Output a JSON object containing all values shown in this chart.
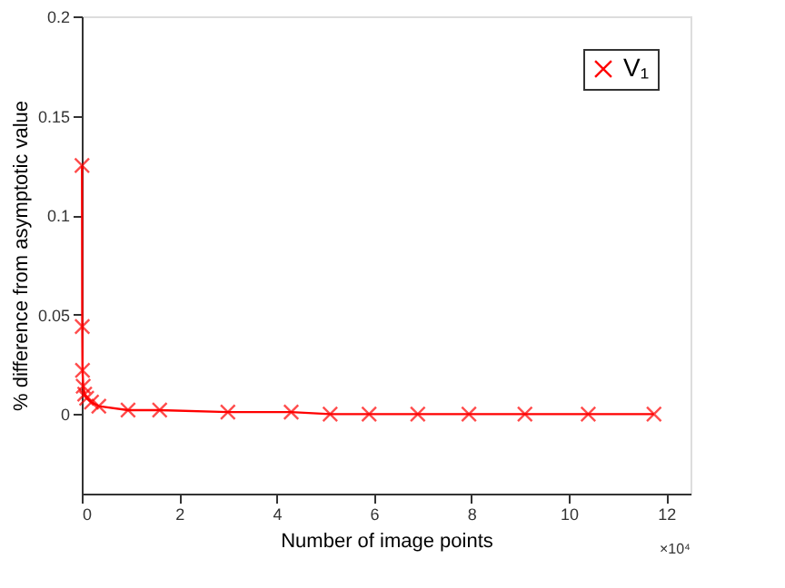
{
  "chart_data": {
    "type": "line",
    "xlabel": "Number of image points",
    "ylabel": "% difference from asymptotic value",
    "annotations": [
      "×10⁴"
    ],
    "series": [
      {
        "name": "V₁",
        "color": "#ff0000",
        "x": [
          0.005,
          0.01,
          0.015,
          0.03,
          0.06,
          0.1,
          0.2,
          0.35,
          0.95,
          1.6,
          3.0,
          4.3,
          5.1,
          5.9,
          6.9,
          7.95,
          9.1,
          10.4,
          11.75
        ],
        "values": [
          0.125,
          0.044,
          0.022,
          0.014,
          0.01,
          0.008,
          0.006,
          0.004,
          0.002,
          0.002,
          0.001,
          0.001,
          0.0,
          0.0,
          0.0,
          0.0,
          0.0,
          0.0,
          0.0
        ]
      }
    ],
    "xlim": [
      0,
      12.5
    ],
    "xticks": [
      0,
      2,
      4,
      6,
      8,
      10,
      12
    ],
    "ylim": [
      -0.04,
      0.2
    ],
    "yticks": [
      0,
      0.05,
      0.1,
      0.15,
      0.2
    ],
    "marker": "cross",
    "line_style": "solid",
    "grid": false,
    "legend": "top right"
  }
}
